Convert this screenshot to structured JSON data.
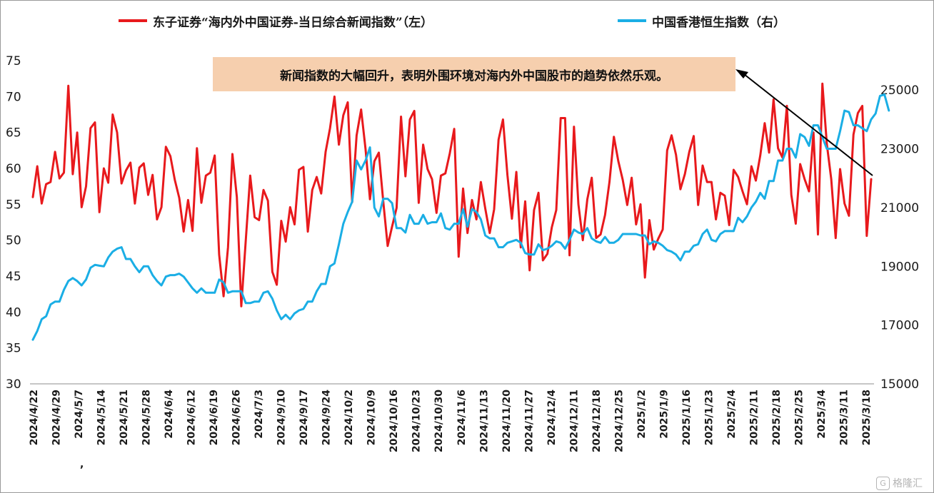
{
  "chart_data": {
    "type": "line",
    "legend": {
      "left_series_label": "东子证券“海内外中国证券-当日综合新闻指数”（左）",
      "right_series_label": "中国香港恒生指数（右）",
      "placement": "top"
    },
    "annotation": "新闻指数的大幅回升，表明外围环境对海内外中国股市的趋势依然乐观。",
    "x_ticks": [
      "2024/4/22",
      "2024/4/29",
      "2024/5/7",
      "2024/5/14",
      "2024/5/21",
      "2024/5/28",
      "2024/6/4",
      "2024/6/12",
      "2024/6/19",
      "2024/6/26",
      "2024/7/3",
      "2024/9/10",
      "2024/9/17",
      "2024/9/24",
      "2024/10/2",
      "2024/10/9",
      "2024/10/16",
      "2024/10/23",
      "2024/10/30",
      "2024/11/6",
      "2024/11/13",
      "2024/11/20",
      "2024/11/27",
      "2024/12/4",
      "2024/12/11",
      "2024/12/18",
      "2024/12/25",
      "2025/1/2",
      "2025/1/9",
      "2025/1/16",
      "2025/1/23",
      "2025/2/4",
      "2025/2/11",
      "2025/2/18",
      "2025/2/25",
      "2025/3/4",
      "2025/3/11",
      "2025/3/18"
    ],
    "stray_mark": ",",
    "y_left": {
      "min": 30,
      "max": 75,
      "ticks": [
        "30",
        "35",
        "40",
        "45",
        "50",
        "55",
        "60",
        "65",
        "70",
        "75"
      ]
    },
    "y_right": {
      "min": 15000,
      "max": 26000,
      "ticks": [
        "15000",
        "17000",
        "19000",
        "21000",
        "23000",
        "25000"
      ]
    },
    "grid": false,
    "colors": {
      "news_index": "#e8191c",
      "hang_seng": "#1aaee5",
      "annotation_bg": "#f6cfae",
      "arrow": "#000000"
    },
    "series": [
      {
        "key": "news_index",
        "axis": "left",
        "values": [
          56,
          60.3,
          55.1,
          57.8,
          58.1,
          62.3,
          58.6,
          59.4,
          71.5,
          59.2,
          65,
          54.6,
          57.5,
          65.6,
          66.4,
          53.9,
          60,
          58,
          67.5,
          65,
          57.9,
          59.7,
          60.8,
          55.1,
          60.1,
          60.7,
          56.3,
          59.1,
          52.9,
          54.6,
          63,
          61.7,
          58.4,
          55.9,
          51.2,
          55.6,
          51.3,
          62.8,
          55.2,
          59,
          59.4,
          61.8,
          48,
          42.2,
          49,
          62,
          56,
          40.8,
          50,
          59,
          53.2,
          52.8,
          57,
          55.5,
          45.6,
          43.8,
          52.7,
          49.8,
          54.6,
          52.2,
          59.8,
          60.2,
          51.2,
          57,
          58.8,
          56.5,
          62.3,
          65.6,
          70,
          63.3,
          67.4,
          69.2,
          55.3,
          64.6,
          68.2,
          62.7,
          55.7,
          61,
          62.2,
          55.4,
          49.2,
          51.9,
          54.5,
          67.2,
          58.9,
          66.8,
          68,
          55.2,
          63.3,
          59.9,
          58.5,
          53.8,
          59,
          59.3,
          62.1,
          65.5,
          47.7,
          57.2,
          51,
          55.6,
          52.9,
          58.1,
          54.4,
          51,
          54.3,
          64,
          66.8,
          59.1,
          53,
          59.5,
          49,
          55.4,
          45.8,
          54.2,
          56.6,
          47.2,
          48.1,
          51.8,
          54.2,
          67,
          67,
          47.9,
          65.8,
          55,
          50,
          55.7,
          58.7,
          50.3,
          50.8,
          53.5,
          58.1,
          64.4,
          61,
          58.4,
          54.9,
          58.7,
          52.2,
          55,
          44.8,
          52.8,
          48.7,
          50.2,
          51.5,
          62.5,
          64.6,
          61.9,
          57.1,
          59.2,
          62.3,
          64.5,
          54.9,
          60.4,
          58.1,
          58.1,
          52.9,
          56.6,
          56.2,
          52.1,
          59.8,
          58.8,
          56.8,
          55,
          60.3,
          58.3,
          61.8,
          66.3,
          62.2,
          69.6,
          62.8,
          61.5,
          68.7,
          56.3,
          52.3,
          60.6,
          58.5,
          56.8,
          65,
          50.8,
          71.8,
          63.4,
          58.5,
          50.3,
          59.9,
          55.1,
          53.4,
          64.7,
          67.7,
          68.7,
          50.6,
          58.5
        ]
      },
      {
        "key": "hang_seng",
        "axis": "right",
        "values": [
          16500,
          16800,
          17200,
          17300,
          17700,
          17800,
          17800,
          18200,
          18500,
          18600,
          18500,
          18350,
          18550,
          18950,
          19050,
          19020,
          19000,
          19300,
          19500,
          19600,
          19650,
          19250,
          19250,
          19000,
          18800,
          19000,
          19000,
          18700,
          18500,
          18350,
          18650,
          18700,
          18700,
          18750,
          18650,
          18450,
          18250,
          18100,
          18250,
          18100,
          18100,
          18100,
          18550,
          18450,
          18100,
          18150,
          18150,
          18150,
          17750,
          17750,
          17800,
          17800,
          18100,
          18150,
          17900,
          17500,
          17200,
          17350,
          17200,
          17400,
          17500,
          17550,
          17800,
          17800,
          18150,
          18400,
          18400,
          19000,
          19100,
          19750,
          20450,
          20850,
          21200,
          22600,
          22300,
          22600,
          23050,
          21000,
          20700,
          21300,
          21300,
          21150,
          20300,
          20300,
          20150,
          20750,
          20450,
          20450,
          20750,
          20450,
          20500,
          20500,
          20800,
          20300,
          20250,
          20450,
          20450,
          20950,
          20350,
          20950,
          20850,
          20600,
          20050,
          19950,
          19950,
          19650,
          19650,
          19800,
          19850,
          19900,
          19800,
          19450,
          19400,
          19400,
          19750,
          19550,
          19600,
          19700,
          19850,
          19800,
          19600,
          19900,
          20250,
          20150,
          20100,
          20300,
          19950,
          19850,
          19800,
          20000,
          19800,
          19800,
          19900,
          20100,
          20100,
          20100,
          20100,
          20050,
          20050,
          19750,
          19850,
          19800,
          19700,
          19550,
          19500,
          19400,
          19200,
          19500,
          19500,
          19700,
          19750,
          20100,
          20250,
          19900,
          19850,
          20100,
          20200,
          20200,
          20200,
          20650,
          20500,
          20700,
          21000,
          21200,
          21500,
          21300,
          21900,
          21900,
          22600,
          22600,
          23000,
          23000,
          22700,
          23500,
          23400,
          23100,
          23800,
          23800,
          23400,
          23000,
          23000,
          23000,
          23600,
          24300,
          24250,
          23800,
          23800,
          23700,
          23600,
          24000,
          24200,
          24800,
          24850,
          24300
        ]
      }
    ]
  },
  "watermark": {
    "glyph": "G",
    "text": "格隆汇"
  }
}
